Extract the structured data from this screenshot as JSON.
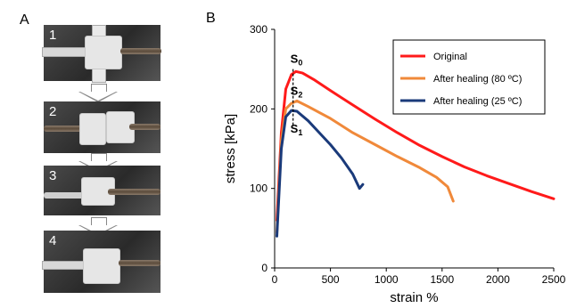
{
  "panel_a": {
    "letter": "A",
    "photos": [
      {
        "label": "1"
      },
      {
        "label": "2"
      },
      {
        "label": "3"
      },
      {
        "label": "4"
      }
    ]
  },
  "chart_data": {
    "panel_letter": "B",
    "type": "line",
    "xlabel": "strain %",
    "ylabel": "stress [kPa]",
    "xlim": [
      0,
      2500
    ],
    "ylim": [
      0,
      300
    ],
    "xticks": [
      "0",
      "500",
      "1000",
      "1500",
      "2000",
      "2500"
    ],
    "yticks": [
      "0",
      "100",
      "200",
      "300"
    ],
    "grid": false,
    "legend_position": "top-right",
    "series": [
      {
        "name": "Original",
        "color": "#ff1a1a",
        "x": [
          20,
          60,
          100,
          150,
          190,
          250,
          350,
          500,
          700,
          900,
          1100,
          1300,
          1500,
          1700,
          1900,
          2100,
          2300,
          2500
        ],
        "y": [
          60,
          170,
          225,
          243,
          247,
          245,
          237,
          223,
          205,
          187,
          170,
          154,
          140,
          127,
          116,
          106,
          96,
          87
        ]
      },
      {
        "name": "After healing (80 ºC)",
        "color": "#f0893a",
        "x": [
          20,
          60,
          100,
          150,
          200,
          300,
          500,
          700,
          900,
          1100,
          1300,
          1450,
          1550,
          1600
        ],
        "y": [
          45,
          160,
          200,
          207,
          210,
          203,
          188,
          170,
          155,
          140,
          126,
          114,
          102,
          84
        ]
      },
      {
        "name": "After healing (25 ºC)",
        "color": "#1a3a7a",
        "x": [
          20,
          60,
          100,
          150,
          200,
          300,
          400,
          500,
          600,
          700,
          760,
          790
        ],
        "y": [
          40,
          150,
          190,
          198,
          197,
          185,
          170,
          155,
          138,
          118,
          100,
          105
        ]
      }
    ],
    "annotations": [
      {
        "main": "S",
        "sub": "0"
      },
      {
        "main": "S",
        "sub": "2"
      },
      {
        "main": "S",
        "sub": "1"
      }
    ]
  }
}
